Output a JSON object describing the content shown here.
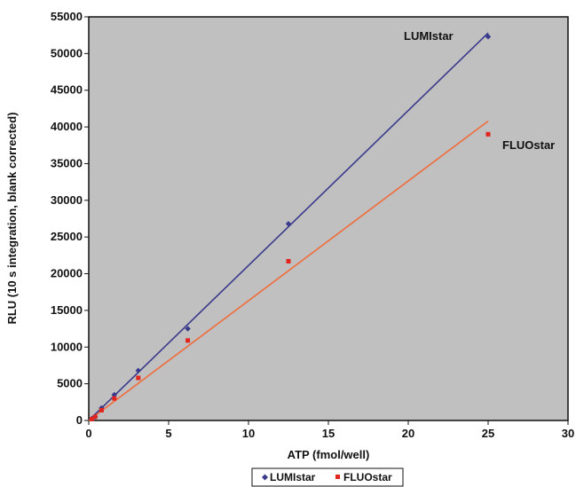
{
  "chart_data": {
    "type": "scatter",
    "xlabel": "ATP (fmol/well)",
    "ylabel": "RLU (10 s integration, blank corrected)",
    "xlim": [
      0,
      30
    ],
    "ylim": [
      0,
      55000
    ],
    "xticks": [
      "0",
      "5",
      "10",
      "15",
      "20",
      "25",
      "30"
    ],
    "yticks": [
      "0",
      "5000",
      "10000",
      "15000",
      "20000",
      "25000",
      "30000",
      "35000",
      "40000",
      "45000",
      "50000",
      "55000"
    ],
    "grid": false,
    "background": "#c0c0c0",
    "legend_position": "bottom",
    "series": [
      {
        "name": "LUMIstar",
        "color": "#3a3a8c",
        "marker": "diamond",
        "points": [
          [
            0.2,
            250
          ],
          [
            0.4,
            500
          ],
          [
            0.8,
            1700
          ],
          [
            1.6,
            3500
          ],
          [
            3.1,
            6800
          ],
          [
            6.2,
            12500
          ],
          [
            12.5,
            26800
          ],
          [
            25,
            52300
          ]
        ],
        "fit_line": [
          [
            0,
            0
          ],
          [
            25,
            52800
          ]
        ],
        "annotation": "LUMIstar"
      },
      {
        "name": "FLUOstar",
        "color": "#e2251e",
        "line_color": "#f06a3a",
        "marker": "square",
        "points": [
          [
            0.2,
            200
          ],
          [
            0.4,
            500
          ],
          [
            0.8,
            1400
          ],
          [
            1.6,
            3000
          ],
          [
            3.1,
            5800
          ],
          [
            6.2,
            10900
          ],
          [
            12.5,
            21700
          ],
          [
            25,
            39000
          ]
        ],
        "fit_line": [
          [
            0,
            0
          ],
          [
            25,
            40800
          ]
        ],
        "annotation": "FLUOstar"
      }
    ]
  }
}
